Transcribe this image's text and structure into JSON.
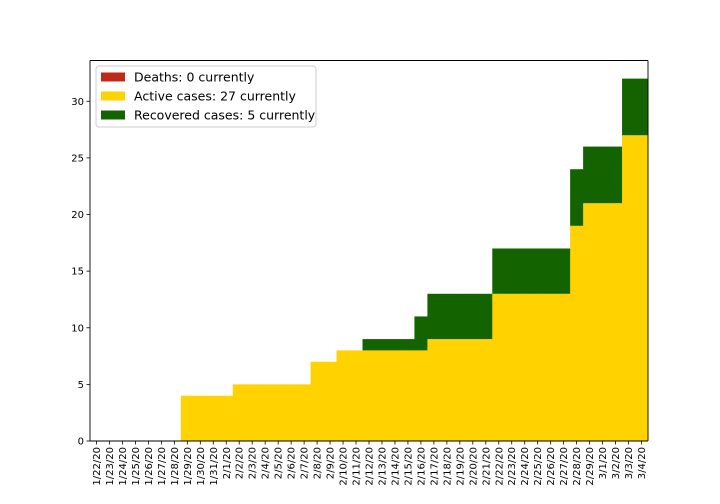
{
  "chart_data": {
    "type": "bar",
    "stacked": true,
    "categories": [
      "1/22/20",
      "1/23/20",
      "1/24/20",
      "1/25/20",
      "1/26/20",
      "1/27/20",
      "1/28/20",
      "1/29/20",
      "1/30/20",
      "1/31/20",
      "2/1/20",
      "2/2/20",
      "2/3/20",
      "2/4/20",
      "2/5/20",
      "2/6/20",
      "2/7/20",
      "2/8/20",
      "2/9/20",
      "2/10/20",
      "2/11/20",
      "2/12/20",
      "2/13/20",
      "2/14/20",
      "2/15/20",
      "2/16/20",
      "2/17/20",
      "2/18/20",
      "2/19/20",
      "2/20/20",
      "2/21/20",
      "2/22/20",
      "2/23/20",
      "2/24/20",
      "2/25/20",
      "2/26/20",
      "2/27/20",
      "2/28/20",
      "2/29/20",
      "3/1/20",
      "3/2/20",
      "3/3/20",
      "3/4/20"
    ],
    "series": [
      {
        "name": "Deaths: 0 currently",
        "color": "#c0281a",
        "values": [
          0,
          0,
          0,
          0,
          0,
          0,
          0,
          0,
          0,
          0,
          0,
          0,
          0,
          0,
          0,
          0,
          0,
          0,
          0,
          0,
          0,
          0,
          0,
          0,
          0,
          0,
          0,
          0,
          0,
          0,
          0,
          0,
          0,
          0,
          0,
          0,
          0,
          0,
          0,
          0,
          0,
          0,
          0
        ]
      },
      {
        "name": "Active cases: 27 currently",
        "color": "#ffd200",
        "values": [
          0,
          0,
          0,
          0,
          0,
          0,
          0,
          4,
          4,
          4,
          4,
          5,
          5,
          5,
          5,
          5,
          5,
          7,
          7,
          8,
          8,
          8,
          8,
          8,
          8,
          8,
          9,
          9,
          9,
          9,
          9,
          13,
          13,
          13,
          13,
          13,
          13,
          19,
          21,
          21,
          21,
          27,
          27
        ]
      },
      {
        "name": "Recovered cases: 5 currently",
        "color": "#136400",
        "values": [
          0,
          0,
          0,
          0,
          0,
          0,
          0,
          0,
          0,
          0,
          0,
          0,
          0,
          0,
          0,
          0,
          0,
          0,
          0,
          0,
          0,
          1,
          1,
          1,
          1,
          3,
          4,
          4,
          4,
          4,
          4,
          4,
          4,
          4,
          4,
          4,
          4,
          5,
          5,
          5,
          5,
          5,
          5
        ]
      }
    ],
    "y_ticks": [
      0,
      5,
      10,
      15,
      20,
      25,
      30
    ],
    "ylim": [
      0,
      33.6
    ],
    "legend_position": "top-left",
    "grid": false
  }
}
